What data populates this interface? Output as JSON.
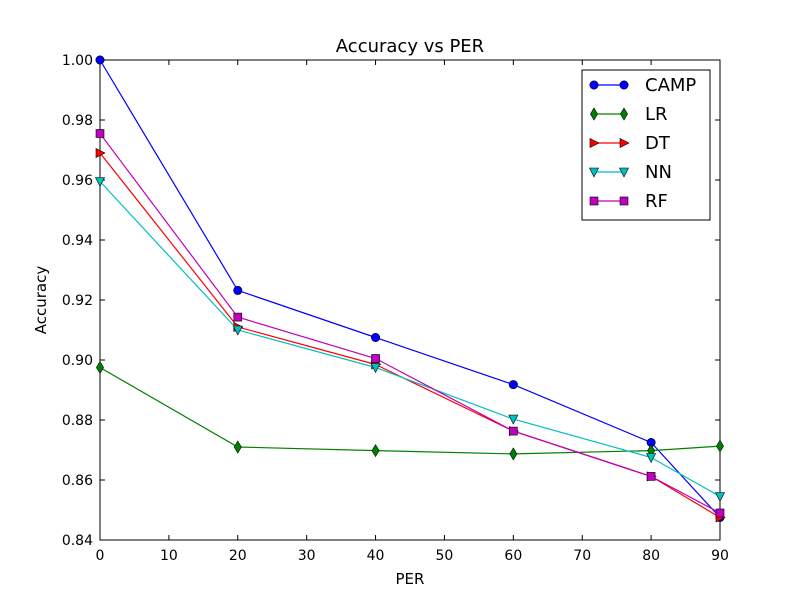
{
  "chart_data": {
    "type": "line",
    "title": "Accuracy vs PER",
    "xlabel": "PER",
    "ylabel": "Accuracy",
    "xlim": [
      0,
      90
    ],
    "ylim": [
      0.84,
      1.0
    ],
    "xticks": [
      0,
      10,
      20,
      30,
      40,
      50,
      60,
      70,
      80,
      90
    ],
    "yticks": [
      0.84,
      0.86,
      0.88,
      0.9,
      0.92,
      0.94,
      0.96,
      0.98,
      1.0
    ],
    "xtick_labels": [
      "0",
      "10",
      "20",
      "30",
      "40",
      "50",
      "60",
      "70",
      "80",
      "90"
    ],
    "ytick_labels": [
      "0.84",
      "0.86",
      "0.88",
      "0.90",
      "0.92",
      "0.94",
      "0.96",
      "0.98",
      "1.00"
    ],
    "grid": false,
    "legend_position": "top-right",
    "x": [
      0,
      20,
      40,
      60,
      80,
      90
    ],
    "series": [
      {
        "name": "CAMP",
        "color": "#0000ff",
        "marker": "circle",
        "values": [
          1.0,
          0.9232,
          0.9075,
          0.8918,
          0.8725,
          0.8475
        ]
      },
      {
        "name": "LR",
        "color": "#008000",
        "marker": "diamond",
        "values": [
          0.8975,
          0.871,
          0.8698,
          0.8687,
          0.8698,
          0.8713
        ]
      },
      {
        "name": "DT",
        "color": "#ff0000",
        "marker": "triangle-right",
        "values": [
          0.969,
          0.911,
          0.8985,
          0.8763,
          0.8612,
          0.8475
        ]
      },
      {
        "name": "NN",
        "color": "#00bfbf",
        "marker": "triangle-down",
        "values": [
          0.9595,
          0.91,
          0.8975,
          0.8803,
          0.8675,
          0.8545
        ]
      },
      {
        "name": "RF",
        "color": "#bf00bf",
        "marker": "square",
        "values": [
          0.9755,
          0.9143,
          0.9005,
          0.8763,
          0.8612,
          0.849
        ]
      }
    ]
  }
}
